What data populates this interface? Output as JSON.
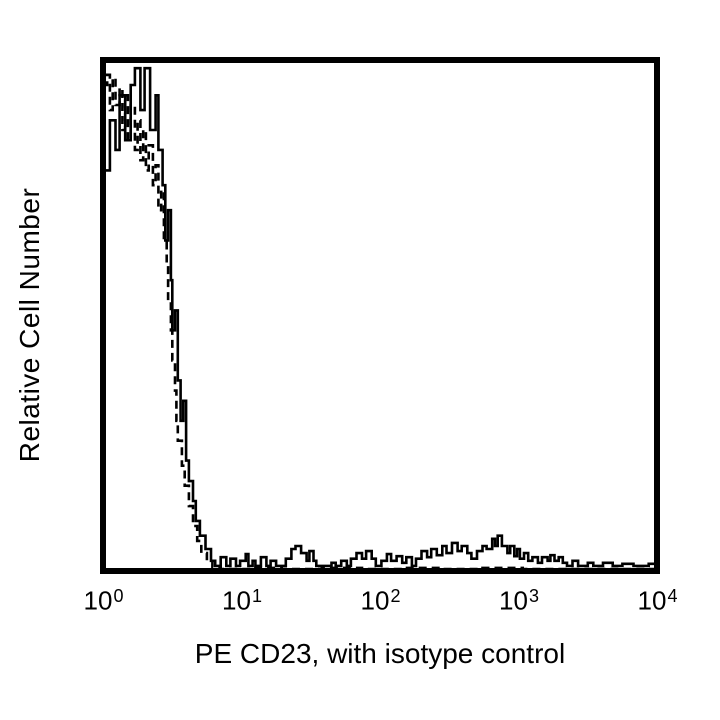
{
  "figure": {
    "background_color": "#ffffff",
    "foreground_color": "#000000"
  },
  "chart_data": {
    "type": "line",
    "subtype": "flow-cytometry-overlay-histogram",
    "title": "",
    "xlabel": "PE CD23, with isotype control",
    "ylabel": "Relative Cell Number",
    "x_scale": "log10",
    "x_range_exponents": [
      0,
      4
    ],
    "y_range_relative": [
      0,
      100
    ],
    "grid": false,
    "legend": "none (solid = PE CD23 stain, dashed = isotype control)",
    "x_ticks": [
      {
        "base": "10",
        "exponent": 0
      },
      {
        "base": "10",
        "exponent": 1
      },
      {
        "base": "10",
        "exponent": 2
      },
      {
        "base": "10",
        "exponent": 3
      },
      {
        "base": "10",
        "exponent": 4
      }
    ],
    "series": [
      {
        "name": "PE CD23",
        "line_style": "solid",
        "color": "#000000",
        "points": [
          [
            0.0,
            78.4
          ],
          [
            0.05,
            88.2
          ],
          [
            0.09,
            82.4
          ],
          [
            0.12,
            93.1
          ],
          [
            0.16,
            84.3
          ],
          [
            0.2,
            95.1
          ],
          [
            0.23,
            98.4
          ],
          [
            0.27,
            90.2
          ],
          [
            0.3,
            98.4
          ],
          [
            0.34,
            86.3
          ],
          [
            0.38,
            93.1
          ],
          [
            0.4,
            82.4
          ],
          [
            0.43,
            75.5
          ],
          [
            0.45,
            64.7
          ],
          [
            0.47,
            70.6
          ],
          [
            0.49,
            56.9
          ],
          [
            0.5,
            47.1
          ],
          [
            0.52,
            51.0
          ],
          [
            0.54,
            37.3
          ],
          [
            0.56,
            29.4
          ],
          [
            0.58,
            33.3
          ],
          [
            0.6,
            21.6
          ],
          [
            0.62,
            17.6
          ],
          [
            0.65,
            13.7
          ],
          [
            0.67,
            9.8
          ],
          [
            0.7,
            6.9
          ],
          [
            0.74,
            4.3
          ],
          [
            0.78,
            2.0
          ],
          [
            0.81,
            1.0
          ],
          [
            0.85,
            2.7
          ],
          [
            0.89,
            1.0
          ],
          [
            0.92,
            2.4
          ],
          [
            0.96,
            1.0
          ],
          [
            0.99,
            2.0
          ],
          [
            1.03,
            3.3
          ],
          [
            1.05,
            1.0
          ],
          [
            1.08,
            2.0
          ],
          [
            1.1,
            1.0
          ],
          [
            1.14,
            2.7
          ],
          [
            1.18,
            1.0
          ],
          [
            1.21,
            2.0
          ],
          [
            1.25,
            1.0
          ],
          [
            1.32,
            2.4
          ],
          [
            1.36,
            4.3
          ],
          [
            1.39,
            4.9
          ],
          [
            1.43,
            3.5
          ],
          [
            1.47,
            2.0
          ],
          [
            1.49,
            3.9
          ],
          [
            1.52,
            2.0
          ],
          [
            1.54,
            1.0
          ],
          [
            1.65,
            1.6
          ],
          [
            1.68,
            1.0
          ],
          [
            1.72,
            2.0
          ],
          [
            1.76,
            1.0
          ],
          [
            1.79,
            2.4
          ],
          [
            1.83,
            3.5
          ],
          [
            1.87,
            2.4
          ],
          [
            1.9,
            3.9
          ],
          [
            1.94,
            2.4
          ],
          [
            1.97,
            1.0
          ],
          [
            2.01,
            2.0
          ],
          [
            2.05,
            3.3
          ],
          [
            2.08,
            2.0
          ],
          [
            2.12,
            2.9
          ],
          [
            2.16,
            1.6
          ],
          [
            2.19,
            2.7
          ],
          [
            2.23,
            1.0
          ],
          [
            2.26,
            2.4
          ],
          [
            2.3,
            3.9
          ],
          [
            2.34,
            2.7
          ],
          [
            2.37,
            4.3
          ],
          [
            2.41,
            3.1
          ],
          [
            2.45,
            4.9
          ],
          [
            2.48,
            3.5
          ],
          [
            2.52,
            5.5
          ],
          [
            2.56,
            3.9
          ],
          [
            2.59,
            4.9
          ],
          [
            2.63,
            3.5
          ],
          [
            2.66,
            2.4
          ],
          [
            2.7,
            3.9
          ],
          [
            2.74,
            4.9
          ],
          [
            2.77,
            4.3
          ],
          [
            2.81,
            6.3
          ],
          [
            2.83,
            4.9
          ],
          [
            2.85,
            6.9
          ],
          [
            2.88,
            4.9
          ],
          [
            2.92,
            3.5
          ],
          [
            2.94,
            4.9
          ],
          [
            2.97,
            2.9
          ],
          [
            2.99,
            4.3
          ],
          [
            3.01,
            2.4
          ],
          [
            3.04,
            3.5
          ],
          [
            3.07,
            2.0
          ],
          [
            3.1,
            2.7
          ],
          [
            3.14,
            1.6
          ],
          [
            3.17,
            2.7
          ],
          [
            3.21,
            2.0
          ],
          [
            3.23,
            3.1
          ],
          [
            3.26,
            2.0
          ],
          [
            3.29,
            2.7
          ],
          [
            3.32,
            1.6
          ],
          [
            3.35,
            1.0
          ],
          [
            3.39,
            2.0
          ],
          [
            3.43,
            1.0
          ],
          [
            3.5,
            1.6
          ],
          [
            3.54,
            1.0
          ],
          [
            3.61,
            1.6
          ],
          [
            3.68,
            1.0
          ],
          [
            3.75,
            1.4
          ],
          [
            3.83,
            1.0
          ],
          [
            3.94,
            1.4
          ],
          [
            4.0,
            1.0
          ]
        ]
      },
      {
        "name": "isotype control",
        "line_style": "dashed",
        "color": "#000000",
        "points": [
          [
            0.0,
            95.1
          ],
          [
            0.03,
            97.1
          ],
          [
            0.05,
            90.2
          ],
          [
            0.07,
            96.5
          ],
          [
            0.09,
            91.2
          ],
          [
            0.12,
            94.5
          ],
          [
            0.14,
            86.3
          ],
          [
            0.16,
            93.1
          ],
          [
            0.18,
            84.3
          ],
          [
            0.2,
            91.2
          ],
          [
            0.23,
            82.4
          ],
          [
            0.25,
            88.2
          ],
          [
            0.27,
            80.4
          ],
          [
            0.29,
            86.3
          ],
          [
            0.31,
            78.4
          ],
          [
            0.33,
            83.3
          ],
          [
            0.36,
            75.5
          ],
          [
            0.38,
            79.4
          ],
          [
            0.4,
            70.6
          ],
          [
            0.42,
            74.5
          ],
          [
            0.44,
            64.7
          ],
          [
            0.46,
            59.8
          ],
          [
            0.47,
            52.9
          ],
          [
            0.49,
            47.1
          ],
          [
            0.5,
            41.2
          ],
          [
            0.52,
            35.3
          ],
          [
            0.53,
            29.4
          ],
          [
            0.54,
            25.5
          ],
          [
            0.57,
            20.6
          ],
          [
            0.59,
            16.7
          ],
          [
            0.62,
            12.7
          ],
          [
            0.65,
            8.8
          ],
          [
            0.68,
            5.9
          ],
          [
            0.71,
            3.5
          ],
          [
            0.75,
            2.0
          ],
          [
            0.79,
            0.8
          ],
          [
            0.85,
            0.4
          ],
          [
            1.07,
            0.6
          ],
          [
            1.29,
            0.4
          ],
          [
            1.58,
            0.6
          ],
          [
            1.87,
            0.4
          ],
          [
            2.16,
            0.6
          ],
          [
            2.45,
            0.4
          ],
          [
            2.74,
            0.6
          ],
          [
            3.03,
            0.4
          ],
          [
            3.32,
            0.4
          ],
          [
            3.61,
            0.4
          ],
          [
            4.0,
            0.4
          ]
        ]
      }
    ]
  }
}
